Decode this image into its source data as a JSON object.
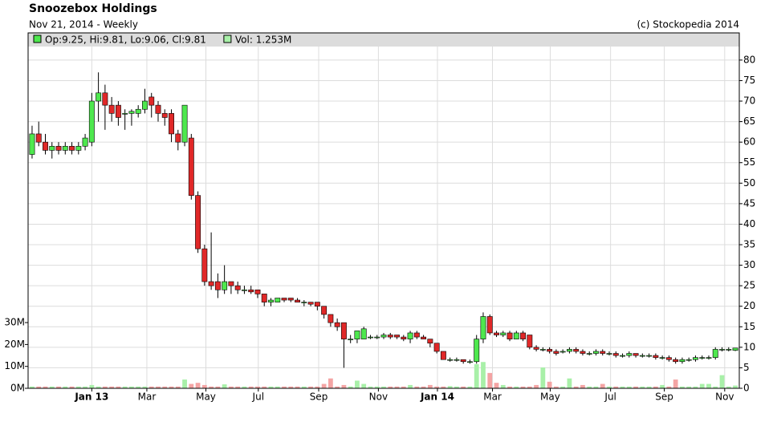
{
  "chart_data": {
    "type": "candlestick",
    "title": "Snoozebox Holdings",
    "subtitle": "Nov 21, 2014 - Weekly",
    "credit": "(c) Stockopedia 2014",
    "legend": [
      {
        "label": "Op:9.25, Hi:9.81, Lo:9.06, Cl:9.81",
        "color": "#4ee84e"
      },
      {
        "label": "Vol: 1.253M",
        "color": "#a8f0a8"
      }
    ],
    "up_color": "#4ee84e",
    "down_color": "#e02828",
    "volume_up_color": "#a8f0a8",
    "volume_down_color": "#f4a4a4",
    "grid": true,
    "open": [
      57,
      62,
      60,
      58,
      59,
      58,
      59,
      58,
      59,
      60,
      70,
      72,
      69,
      69,
      67,
      67,
      67,
      68,
      71,
      69,
      67,
      67,
      62,
      60,
      61,
      47,
      34,
      26,
      26,
      24,
      26,
      25,
      24,
      24,
      24,
      23,
      21,
      21,
      22,
      22,
      21.5,
      21,
      21,
      21,
      20,
      18,
      16,
      16,
      12,
      12,
      12,
      12.5,
      12.5,
      12.5,
      13,
      13,
      12.5,
      12,
      13.5,
      12.5,
      12,
      11,
      9,
      7,
      7,
      7,
      6.5,
      6.5,
      12,
      17.5,
      13.5,
      13,
      13.5,
      12,
      13.5,
      13,
      10,
      9.5,
      9.5,
      9,
      9,
      9,
      9.5,
      9,
      8.5,
      8.5,
      9,
      8.5,
      8.5,
      8,
      8,
      8.5,
      8,
      8,
      8,
      7.5,
      7.5,
      7,
      6.5,
      7,
      7,
      7.5,
      7.5,
      7.5,
      9.5,
      9.5,
      9.25
    ],
    "high": [
      64,
      65,
      62,
      60,
      60,
      60,
      60,
      60,
      62,
      72,
      77,
      74,
      71,
      70,
      68,
      68,
      69,
      73,
      72,
      70,
      68,
      68,
      63,
      69,
      62,
      48,
      35,
      38,
      28,
      30,
      26,
      26,
      25,
      25,
      24,
      23,
      22,
      22,
      22,
      22,
      22,
      21.5,
      21,
      21,
      20,
      18,
      17,
      16,
      13,
      14,
      15,
      13,
      13,
      13.5,
      13.5,
      13,
      13,
      14,
      14,
      13,
      12,
      11,
      9,
      7.5,
      7.5,
      7,
      7,
      13,
      18.5,
      18,
      14,
      14,
      14,
      14,
      14,
      13,
      10.5,
      10,
      10,
      9.5,
      9.5,
      10,
      10,
      9.5,
      9,
      9.5,
      9.5,
      9,
      9,
      8.5,
      9,
      8.5,
      8.5,
      8.5,
      8.5,
      8,
      8,
      7.5,
      7.5,
      7.5,
      8,
      8,
      8,
      10,
      10,
      10,
      9.81
    ],
    "low": [
      56,
      59,
      57,
      56,
      57,
      57,
      57,
      57,
      58,
      59,
      65,
      63,
      65,
      64,
      63,
      64,
      66,
      67,
      66,
      65,
      64,
      60,
      58,
      59,
      46,
      33,
      25,
      24,
      22,
      23,
      23,
      23,
      23,
      23,
      22,
      20,
      20,
      21,
      21,
      21,
      21,
      20,
      20,
      19,
      17,
      15,
      14,
      5,
      11,
      11,
      12,
      12,
      12,
      12,
      12,
      12,
      11.5,
      11,
      12,
      12,
      10,
      8.5,
      7,
      6.5,
      6.5,
      6,
      6,
      6,
      11,
      13,
      12.5,
      12.5,
      11.5,
      12,
      11.5,
      9.5,
      9,
      9,
      8.5,
      8,
      8.5,
      8.5,
      8.5,
      8,
      8,
      8,
      8,
      8,
      7.5,
      7.5,
      7.5,
      7.5,
      7.5,
      7.5,
      7,
      7,
      6.5,
      6,
      6,
      6.5,
      6.5,
      7,
      7,
      7,
      9,
      9,
      9.06
    ],
    "close": [
      62,
      60,
      58,
      59,
      58,
      59,
      58,
      59,
      61,
      70,
      72,
      69,
      67,
      66,
      67,
      67.5,
      68,
      70,
      69,
      67,
      66,
      62,
      60,
      69,
      47,
      34,
      26,
      25,
      24,
      26,
      25,
      24,
      24,
      23.5,
      23,
      21,
      21.5,
      22,
      21.5,
      21.5,
      21,
      21,
      20.5,
      20,
      18,
      16,
      15,
      12,
      12,
      14,
      14.5,
      12.5,
      12.5,
      13,
      12.5,
      12.5,
      12,
      13.5,
      12.5,
      12,
      11,
      9,
      7,
      7,
      7,
      6.5,
      6.5,
      12,
      17.5,
      13.5,
      13,
      13.5,
      12,
      13.5,
      12,
      10,
      9.5,
      9.5,
      9,
      8.5,
      9,
      9.5,
      9,
      8.5,
      8.5,
      9,
      8.5,
      8.5,
      8,
      8,
      8.5,
      8,
      8,
      8,
      7.5,
      7.5,
      7,
      6.5,
      7,
      7,
      7.5,
      7.5,
      7.5,
      9.5,
      9.5,
      9.5,
      9.81
    ],
    "volume": [
      0.8,
      0.8,
      0.8,
      0.8,
      0.8,
      0.8,
      0.8,
      0.8,
      0.8,
      1.5,
      0.8,
      0.8,
      0.8,
      0.8,
      0.8,
      0.8,
      0.8,
      0.8,
      0.8,
      0.8,
      0.8,
      0.8,
      0.8,
      4,
      2,
      2.5,
      1.5,
      0.8,
      0.8,
      1.8,
      0.8,
      0.8,
      0.8,
      0.8,
      0.8,
      0.8,
      0.8,
      0.8,
      0.8,
      0.8,
      0.8,
      0.8,
      0.8,
      0.8,
      2,
      4.5,
      0.8,
      1.5,
      0.8,
      3.5,
      2,
      0.8,
      0.8,
      0.8,
      0.8,
      0.8,
      0.8,
      1.5,
      0.8,
      0.8,
      1.5,
      0.8,
      0.8,
      1,
      0.8,
      0.8,
      0.8,
      11,
      12,
      7,
      2.5,
      1.5,
      0.8,
      0.8,
      0.8,
      0.8,
      1.5,
      9.5,
      3,
      0.8,
      0.8,
      4.5,
      0.8,
      1.5,
      0.8,
      0.8,
      2,
      0.8,
      0.8,
      0.8,
      0.8,
      0.8,
      0.8,
      0.8,
      0.8,
      1.5,
      0.8,
      4,
      0.8,
      0.8,
      0.8,
      2,
      2,
      0.8,
      6,
      0.8,
      1.253
    ],
    "xlim": [
      -0.6,
      106.6
    ],
    "xticks": [
      {
        "value": 9,
        "label": "Jan 13"
      },
      {
        "value": 17.3,
        "label": "Mar"
      },
      {
        "value": 26.2,
        "label": "May"
      },
      {
        "value": 34.1,
        "label": "Jul"
      },
      {
        "value": 43.2,
        "label": "Sep"
      },
      {
        "value": 52.2,
        "label": "Nov"
      },
      {
        "value": 61.1,
        "label": "Jan 14"
      },
      {
        "value": 69.4,
        "label": "Mar"
      },
      {
        "value": 78.1,
        "label": "May"
      },
      {
        "value": 87.2,
        "label": "Jul"
      },
      {
        "value": 95.3,
        "label": "Sep"
      },
      {
        "value": 104.4,
        "label": "Nov"
      }
    ],
    "ylim": [
      0,
      83.3
    ],
    "yticks": [
      0,
      5,
      10,
      15,
      20,
      25,
      30,
      35,
      40,
      45,
      50,
      55,
      60,
      65,
      70,
      75,
      80
    ],
    "y2lim": [
      0,
      156
    ],
    "y2ticks": [
      {
        "value": 0,
        "label": "0M"
      },
      {
        "value": 10,
        "label": "10M"
      },
      {
        "value": 20,
        "label": "20M"
      },
      {
        "value": 30,
        "label": "30M"
      }
    ]
  }
}
